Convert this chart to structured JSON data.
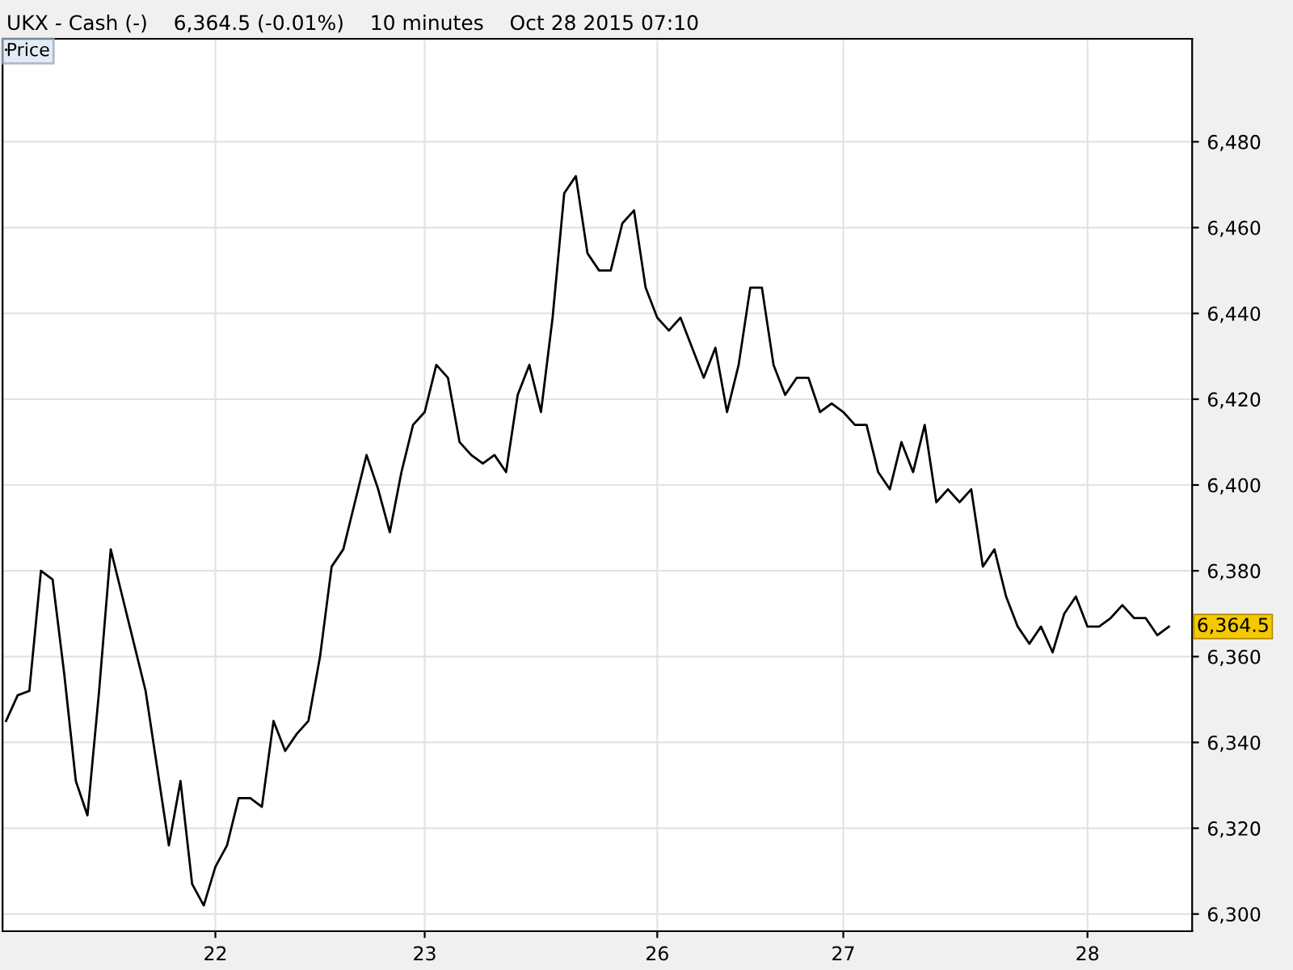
{
  "chart_data": {
    "type": "line",
    "title": "UKX - Cash (-)    6,364.5 (-0.01%)    10 minutes    Oct 28 2015 07:10",
    "categories": [
      null,
      null,
      null,
      null,
      null,
      null,
      null,
      null,
      null,
      null,
      null,
      null,
      null,
      null,
      null,
      null,
      null,
      null,
      "22",
      null,
      null,
      null,
      null,
      null,
      null,
      null,
      null,
      null,
      null,
      null,
      null,
      null,
      null,
      null,
      null,
      null,
      "23",
      null,
      null,
      null,
      null,
      null,
      null,
      null,
      null,
      null,
      null,
      null,
      null,
      null,
      null,
      null,
      null,
      null,
      null,
      null,
      "26",
      null,
      null,
      null,
      null,
      null,
      null,
      null,
      null,
      null,
      null,
      null,
      null,
      null,
      null,
      null,
      "27",
      null,
      null,
      null,
      null,
      null,
      null,
      null,
      null,
      null,
      null,
      null,
      null,
      null,
      null,
      null,
      null,
      null,
      null,
      null,
      null,
      "28",
      null,
      null,
      null,
      null,
      null,
      null,
      null
    ],
    "series": [
      {
        "name": "Price",
        "color": "#000000",
        "values": [
          6345,
          6351,
          6352,
          6380,
          6378,
          6356,
          6331,
          6323,
          6352,
          6385,
          6374,
          6363,
          6352,
          6334,
          6316,
          6331,
          6307,
          6302,
          6311,
          6316,
          6327,
          6327,
          6325,
          6345,
          6338,
          6342,
          6345,
          6360,
          6381,
          6385,
          6396,
          6407,
          6399,
          6389,
          6403,
          6414,
          6417,
          6428,
          6425,
          6410,
          6407,
          6405,
          6407,
          6403,
          6421,
          6428,
          6417,
          6439,
          6468,
          6472,
          6454,
          6450,
          6450,
          6461,
          6464,
          6446,
          6439,
          6436,
          6439,
          6432,
          6425,
          6432,
          6417,
          6428,
          6446,
          6446,
          6428,
          6421,
          6425,
          6425,
          6417,
          6419,
          6417,
          6414,
          6414,
          6403,
          6399,
          6410,
          6403,
          6414,
          6396,
          6399,
          6396,
          6399,
          6381,
          6385,
          6374,
          6367,
          6363,
          6367,
          6361,
          6370,
          6374,
          6367,
          6367,
          6369,
          6372,
          6369,
          6369,
          6365,
          6367
        ]
      }
    ],
    "ylim": [
      6296,
      6504
    ],
    "yticks": [
      {
        "value": 6300,
        "label": "6,300"
      },
      {
        "value": 6320,
        "label": "6,320"
      },
      {
        "value": 6340,
        "label": "6,340"
      },
      {
        "value": 6360,
        "label": "6,360"
      },
      {
        "value": 6380,
        "label": "6,380"
      },
      {
        "value": 6400,
        "label": "6,400"
      },
      {
        "value": 6420,
        "label": "6,420"
      },
      {
        "value": 6440,
        "label": "6,440"
      },
      {
        "value": 6460,
        "label": "6,460"
      },
      {
        "value": 6480,
        "label": "6,480"
      }
    ],
    "annotations": [
      "6,364.5"
    ],
    "grid": true,
    "legend": "top left",
    "marker": "none",
    "line_style": "solid"
  }
}
